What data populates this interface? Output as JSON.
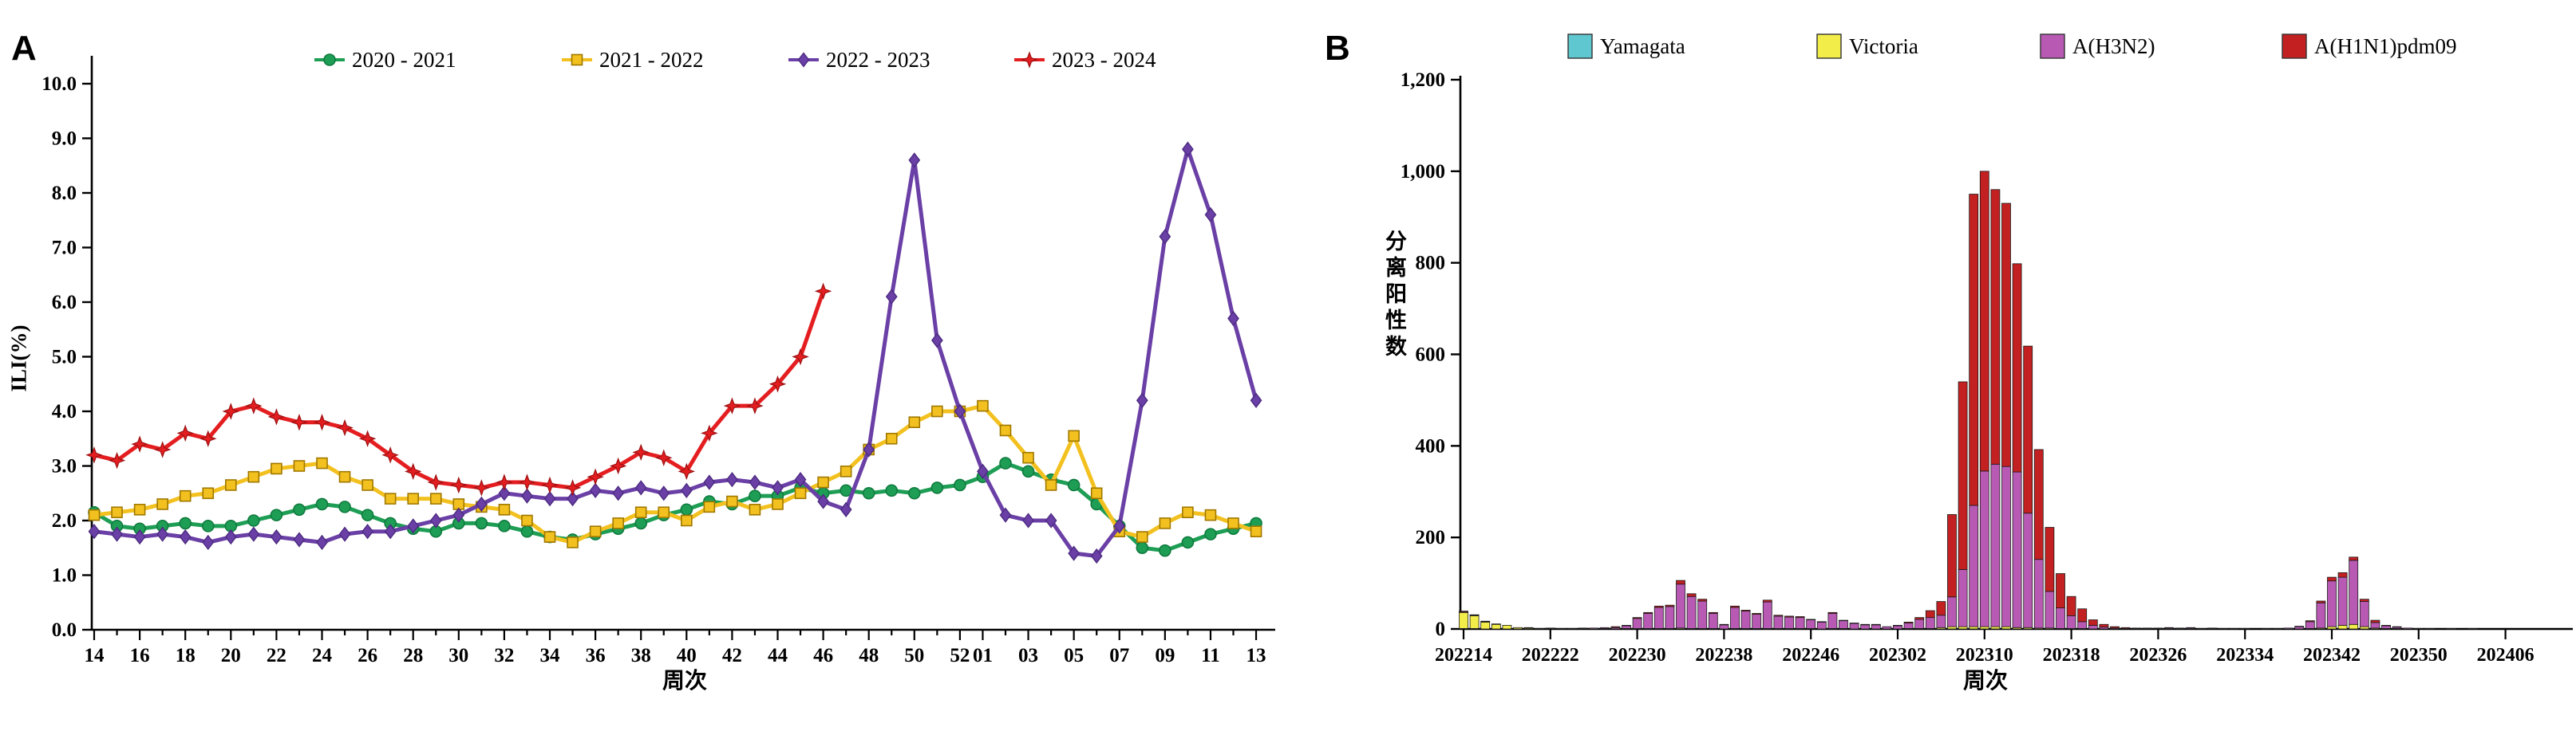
{
  "page": {
    "background": "#ffffff"
  },
  "chart_data": [
    {
      "id": "panel-a",
      "type": "line",
      "panel_label": "A",
      "xlabel": "周次",
      "ylabel": "ILI(%)",
      "ylim": [
        0,
        10
      ],
      "ytick_labels": [
        "0.0",
        "1.0",
        "2.0",
        "3.0",
        "4.0",
        "5.0",
        "6.0",
        "7.0",
        "8.0",
        "9.0",
        "10.0"
      ],
      "grid": false,
      "legend_position": "top-center",
      "categories": [
        "14",
        "15",
        "16",
        "17",
        "18",
        "19",
        "20",
        "21",
        "22",
        "23",
        "24",
        "25",
        "26",
        "27",
        "28",
        "29",
        "30",
        "31",
        "32",
        "33",
        "34",
        "35",
        "36",
        "37",
        "38",
        "39",
        "40",
        "41",
        "42",
        "43",
        "44",
        "45",
        "46",
        "47",
        "48",
        "49",
        "50",
        "51",
        "52",
        "01",
        "02",
        "03",
        "04",
        "05",
        "06",
        "07",
        "08",
        "09",
        "10",
        "11",
        "12",
        "13"
      ],
      "xtick_labeled": [
        "14",
        "16",
        "18",
        "20",
        "22",
        "24",
        "26",
        "28",
        "30",
        "32",
        "34",
        "36",
        "38",
        "40",
        "42",
        "44",
        "46",
        "48",
        "50",
        "52",
        "01",
        "03",
        "05",
        "07",
        "09",
        "11"
      ],
      "series": [
        {
          "name": "2020 - 2021",
          "color": "#1E9E55",
          "edge": "#0F7A3E",
          "marker": "circle",
          "values": [
            2.15,
            1.9,
            1.85,
            1.9,
            1.95,
            1.9,
            1.9,
            2.0,
            2.1,
            2.2,
            2.3,
            2.25,
            2.1,
            1.95,
            1.85,
            1.8,
            1.95,
            1.95,
            1.9,
            1.8,
            1.7,
            1.65,
            1.75,
            1.85,
            1.95,
            2.1,
            2.2,
            2.35,
            2.3,
            2.45,
            2.45,
            2.6,
            2.5,
            2.55,
            2.5,
            2.55,
            2.5,
            2.6,
            2.65,
            2.8,
            3.05,
            2.9,
            2.75,
            2.65,
            2.3,
            1.9,
            1.5,
            1.45,
            1.6,
            1.75,
            1.85,
            1.95
          ]
        },
        {
          "name": "2021 - 2022",
          "color": "#F3C11F",
          "edge": "#A07800",
          "marker": "square",
          "values": [
            2.1,
            2.15,
            2.2,
            2.3,
            2.45,
            2.5,
            2.65,
            2.8,
            2.95,
            3.0,
            3.05,
            2.8,
            2.65,
            2.4,
            2.4,
            2.4,
            2.3,
            2.25,
            2.2,
            2.0,
            1.7,
            1.6,
            1.8,
            1.95,
            2.15,
            2.15,
            2.0,
            2.25,
            2.35,
            2.2,
            2.3,
            2.5,
            2.7,
            2.9,
            3.3,
            3.5,
            3.8,
            4.0,
            4.0,
            4.1,
            3.65,
            3.15,
            2.65,
            3.55,
            2.5,
            1.8,
            1.7,
            1.95,
            2.15,
            2.1,
            1.95,
            1.8
          ]
        },
        {
          "name": "2022 - 2023",
          "color": "#6A3FA6",
          "edge": "#4C2B80",
          "marker": "diamond",
          "values": [
            1.8,
            1.75,
            1.7,
            1.75,
            1.7,
            1.6,
            1.7,
            1.75,
            1.7,
            1.65,
            1.6,
            1.75,
            1.8,
            1.8,
            1.9,
            2.0,
            2.1,
            2.3,
            2.5,
            2.45,
            2.4,
            2.4,
            2.55,
            2.5,
            2.6,
            2.5,
            2.55,
            2.7,
            2.75,
            2.7,
            2.6,
            2.75,
            2.35,
            2.2,
            3.3,
            6.1,
            8.6,
            5.3,
            4.0,
            2.9,
            2.1,
            2.0,
            2.0,
            1.4,
            1.35,
            1.9,
            4.2,
            7.2,
            8.8,
            7.6,
            5.7,
            4.2
          ]
        },
        {
          "name": "2023 - 2024",
          "color": "#E41E20",
          "edge": "#9E1012",
          "marker": "star4",
          "values": [
            3.2,
            3.1,
            3.4,
            3.3,
            3.6,
            3.5,
            4.0,
            4.1,
            3.9,
            3.8,
            3.8,
            3.7,
            3.5,
            3.2,
            2.9,
            2.7,
            2.65,
            2.6,
            2.7,
            2.7,
            2.65,
            2.6,
            2.8,
            3.0,
            3.25,
            3.15,
            2.9,
            3.6,
            4.1,
            4.1,
            4.5,
            5.0,
            6.2,
            null,
            null,
            null,
            null,
            null,
            null,
            null,
            null,
            null,
            null,
            null,
            null,
            null,
            null,
            null,
            null,
            null,
            null,
            null
          ]
        }
      ]
    },
    {
      "id": "panel-b",
      "type": "bar-stacked",
      "panel_label": "B",
      "xlabel": "周次",
      "ylabel": "分离阳性数",
      "ylim": [
        0,
        1200
      ],
      "ytick_labels": [
        "0",
        "200",
        "400",
        "600",
        "800",
        "1,000",
        "1,200"
      ],
      "grid": false,
      "legend_position": "top-center",
      "xtick_every": 8,
      "categories": [
        "202214",
        "202215",
        "202216",
        "202217",
        "202218",
        "202219",
        "202220",
        "202221",
        "202222",
        "202223",
        "202224",
        "202225",
        "202226",
        "202227",
        "202228",
        "202229",
        "202230",
        "202231",
        "202232",
        "202233",
        "202234",
        "202235",
        "202236",
        "202237",
        "202238",
        "202239",
        "202240",
        "202241",
        "202242",
        "202243",
        "202244",
        "202245",
        "202246",
        "202247",
        "202248",
        "202249",
        "202250",
        "202251",
        "202252",
        "202301",
        "202302",
        "202303",
        "202304",
        "202305",
        "202306",
        "202307",
        "202308",
        "202309",
        "202310",
        "202311",
        "202312",
        "202313",
        "202314",
        "202315",
        "202316",
        "202317",
        "202318",
        "202319",
        "202320",
        "202321",
        "202322",
        "202323",
        "202324",
        "202325",
        "202326",
        "202327",
        "202328",
        "202329",
        "202330",
        "202331",
        "202332",
        "202333",
        "202334",
        "202335",
        "202336",
        "202337",
        "202338",
        "202339",
        "202340",
        "202341",
        "202342",
        "202343",
        "202344",
        "202345",
        "202346",
        "202347",
        "202348",
        "202349",
        "202350",
        "202351",
        "202352",
        "202401",
        "202402",
        "202403",
        "202404",
        "202405",
        "202406",
        "202407",
        "202408",
        "202409",
        "202410",
        "202411",
        "202412"
      ],
      "series": [
        {
          "name": "Yamagata",
          "color": "#5FC7CF",
          "edge": "#1b1b1b",
          "values": [
            1,
            1,
            0,
            0,
            0,
            0,
            0,
            0,
            0,
            0,
            0,
            0,
            0,
            0,
            0,
            0,
            0,
            0,
            0,
            0,
            0,
            0,
            0,
            0,
            0,
            0,
            0,
            0,
            0,
            0,
            0,
            0,
            0,
            0,
            0,
            0,
            0,
            0,
            0,
            0,
            0,
            0,
            0,
            0,
            0,
            0,
            0,
            0,
            0,
            0,
            0,
            0,
            0,
            0,
            0,
            0,
            0,
            0,
            0,
            0,
            0,
            0,
            0,
            0,
            0,
            0,
            0,
            0,
            0,
            0,
            0,
            0,
            0,
            0,
            0,
            0,
            0,
            0,
            0,
            0,
            0,
            0,
            0,
            0,
            0,
            0,
            0,
            0,
            0,
            0,
            0,
            0,
            0,
            0,
            0,
            0,
            0,
            0,
            0,
            0,
            0,
            0,
            0
          ]
        },
        {
          "name": "Victoria",
          "color": "#F2ED49",
          "edge": "#1b1b1b",
          "values": [
            35,
            28,
            15,
            10,
            8,
            3,
            2,
            1,
            1,
            1,
            0,
            1,
            0,
            1,
            0,
            1,
            1,
            1,
            1,
            1,
            2,
            1,
            1,
            1,
            0,
            1,
            1,
            1,
            1,
            1,
            1,
            1,
            1,
            0,
            1,
            1,
            0,
            0,
            0,
            0,
            0,
            1,
            1,
            1,
            3,
            5,
            5,
            5,
            5,
            5,
            5,
            3,
            3,
            2,
            2,
            1,
            1,
            1,
            0,
            0,
            0,
            0,
            0,
            0,
            0,
            0,
            0,
            0,
            0,
            0,
            0,
            0,
            0,
            0,
            0,
            0,
            0,
            0,
            1,
            2,
            5,
            8,
            10,
            5,
            2,
            1,
            1,
            0,
            0,
            0,
            0,
            0,
            0,
            0,
            0,
            0,
            0,
            0,
            0,
            0,
            0,
            0,
            0
          ]
        },
        {
          "name": "A(H3N2)",
          "color": "#B85AB4",
          "edge": "#1b1b1b",
          "values": [
            1,
            1,
            1,
            1,
            0,
            0,
            1,
            0,
            1,
            0,
            1,
            1,
            2,
            2,
            3,
            6,
            22,
            33,
            46,
            48,
            96,
            70,
            60,
            33,
            9,
            46,
            38,
            31,
            58,
            27,
            25,
            24,
            19,
            15,
            33,
            17,
            12,
            9,
            9,
            5,
            7,
            12,
            20,
            24,
            27,
            65,
            125,
            265,
            340,
            355,
            350,
            340,
            250,
            150,
            80,
            45,
            28,
            15,
            8,
            4,
            2,
            1,
            1,
            1,
            1,
            2,
            1,
            2,
            1,
            1,
            1,
            1,
            1,
            0,
            1,
            1,
            2,
            5,
            15,
            55,
            100,
            105,
            140,
            55,
            12,
            6,
            3,
            2,
            1,
            1,
            0,
            1,
            0,
            1,
            0,
            0,
            0,
            0,
            0,
            0,
            0,
            0,
            0
          ]
        },
        {
          "name": "A(H1N1)pdm09",
          "color": "#C32021",
          "edge": "#1b1b1b",
          "values": [
            2,
            1,
            1,
            0,
            0,
            0,
            0,
            0,
            0,
            0,
            0,
            0,
            0,
            0,
            2,
            1,
            2,
            2,
            3,
            3,
            8,
            6,
            4,
            2,
            1,
            3,
            2,
            2,
            4,
            2,
            2,
            2,
            1,
            1,
            2,
            1,
            1,
            1,
            1,
            0,
            1,
            2,
            4,
            15,
            30,
            180,
            410,
            680,
            655,
            600,
            575,
            455,
            365,
            240,
            140,
            75,
            42,
            28,
            12,
            6,
            3,
            2,
            1,
            1,
            1,
            1,
            1,
            1,
            0,
            1,
            0,
            0,
            0,
            0,
            0,
            0,
            0,
            1,
            2,
            4,
            8,
            10,
            7,
            5,
            5,
            1,
            1,
            0,
            0,
            0,
            0,
            0,
            0,
            0,
            0,
            0,
            0,
            0,
            0,
            0,
            0,
            0,
            0
          ]
        }
      ]
    }
  ]
}
